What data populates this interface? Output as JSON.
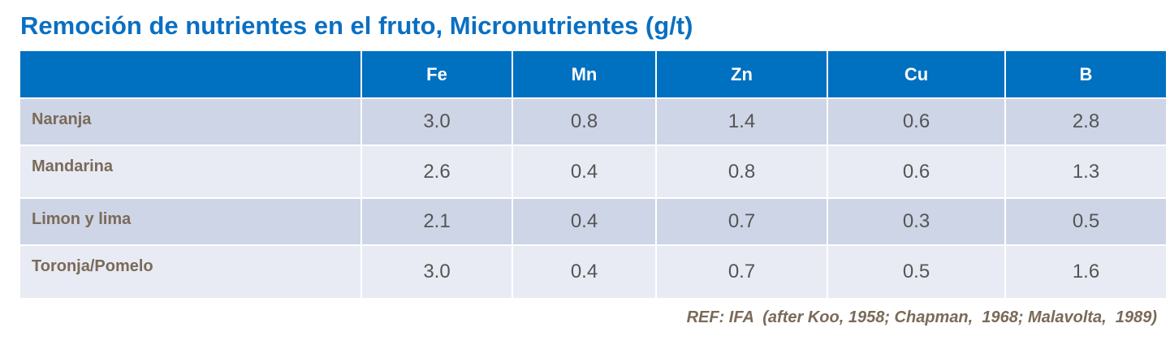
{
  "title": "Remoción de nutrientes en el fruto, Micronutrientes (g/t)",
  "table": {
    "columns": [
      "Fe",
      "Mn",
      "Zn",
      "Cu",
      "B"
    ],
    "rows": [
      {
        "label": "Naranja",
        "values": [
          "3.0",
          "0.8",
          "1.4",
          "0.6",
          "2.8"
        ]
      },
      {
        "label": "Mandarina",
        "values": [
          "2.6",
          "0.4",
          "0.8",
          "0.6",
          "1.3"
        ]
      },
      {
        "label": "Limon y lima",
        "values": [
          "2.1",
          "0.4",
          "0.7",
          "0.3",
          "0.5"
        ]
      },
      {
        "label": "Toronja/Pomelo",
        "values": [
          "3.0",
          "0.4",
          "0.7",
          "0.5",
          "1.6"
        ]
      }
    ]
  },
  "reference": "REF: IFA  (after Koo, 1958; Chapman,  1968; Malavolta,  1989)"
}
